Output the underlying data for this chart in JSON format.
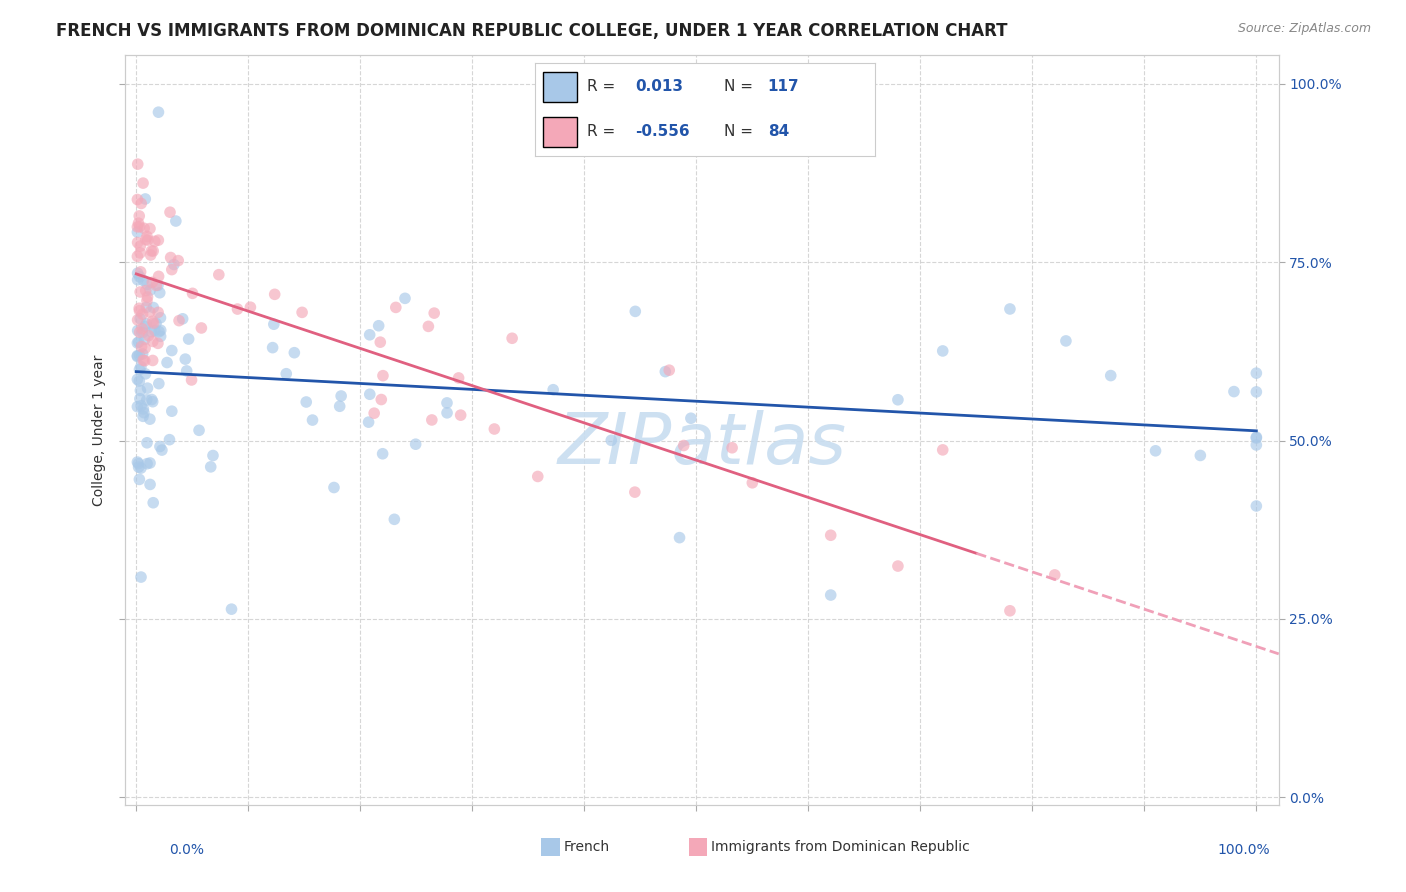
{
  "title": "FRENCH VS IMMIGRANTS FROM DOMINICAN REPUBLIC COLLEGE, UNDER 1 YEAR CORRELATION CHART",
  "source": "Source: ZipAtlas.com",
  "ylabel": "College, Under 1 year",
  "blue_color": "#a8c8e8",
  "pink_color": "#f4a8b8",
  "blue_line_color": "#2255aa",
  "pink_line_color": "#e06080",
  "pink_dashed_color": "#f0a0b8",
  "background_color": "#ffffff",
  "grid_color": "#cccccc",
  "title_fontsize": 12,
  "axis_label_fontsize": 10,
  "tick_fontsize": 10,
  "watermark": "ZIPatlas",
  "watermark_color": "#c8ddf0",
  "watermark_fontsize": 52,
  "blue_R": "0.013",
  "blue_N": "117",
  "pink_R": "-0.556",
  "pink_N": "84",
  "legend_label_blue": "French",
  "legend_label_pink": "Immigrants from Dominican Republic",
  "R_color": "#333333",
  "N_color": "#2255aa",
  "val_color": "#2255aa"
}
